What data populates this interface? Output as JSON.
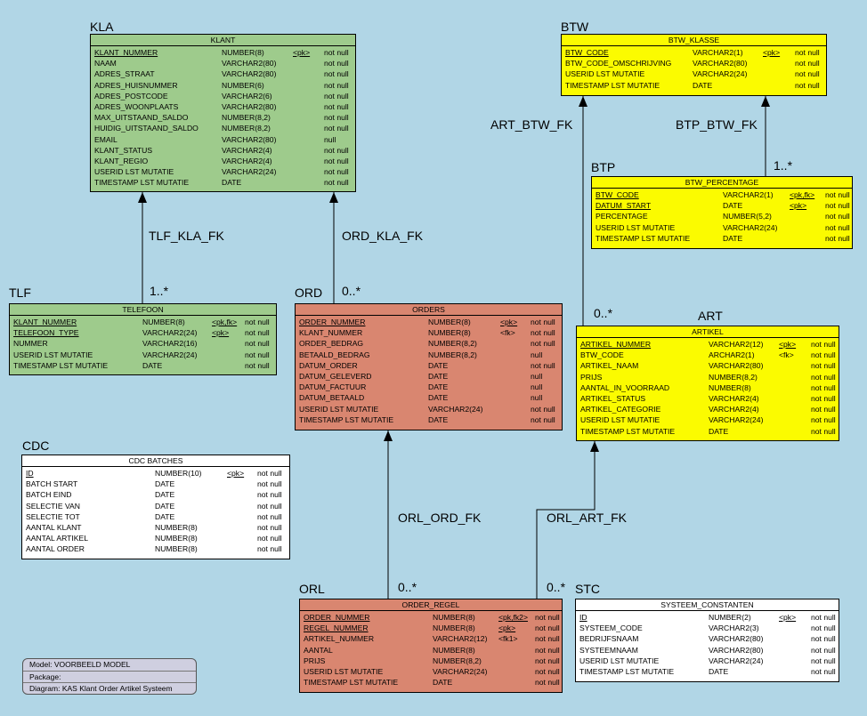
{
  "diagram": {
    "entities": {
      "kla": {
        "code": "KLA",
        "table": "KLANT",
        "rows": [
          {
            "name": "KLANT_NUMMER",
            "type": "NUMBER(8)",
            "key": "<pk>",
            "nullability": "not null",
            "underline": true
          },
          {
            "name": "NAAM",
            "type": "VARCHAR2(80)",
            "key": "",
            "nullability": "not null"
          },
          {
            "name": "ADRES_STRAAT",
            "type": "VARCHAR2(80)",
            "key": "",
            "nullability": "not null"
          },
          {
            "name": "ADRES_HUISNUMMER",
            "type": "NUMBER(6)",
            "key": "",
            "nullability": "not null"
          },
          {
            "name": "ADRES_POSTCODE",
            "type": "VARCHAR2(6)",
            "key": "",
            "nullability": "not null"
          },
          {
            "name": "ADRES_WOONPLAATS",
            "type": "VARCHAR2(80)",
            "key": "",
            "nullability": "not null"
          },
          {
            "name": "MAX_UITSTAAND_SALDO",
            "type": "NUMBER(8,2)",
            "key": "",
            "nullability": "not null"
          },
          {
            "name": "HUIDIG_UITSTAAND_SALDO",
            "type": "NUMBER(8,2)",
            "key": "",
            "nullability": "not null"
          },
          {
            "name": "EMAIL",
            "type": "VARCHAR2(80)",
            "key": "",
            "nullability": "null"
          },
          {
            "name": "KLANT_STATUS",
            "type": "VARCHAR2(4)",
            "key": "",
            "nullability": "not null"
          },
          {
            "name": "KLANT_REGIO",
            "type": "VARCHAR2(4)",
            "key": "",
            "nullability": "not null"
          },
          {
            "name": "USERID LST MUTATIE",
            "type": "VARCHAR2(24)",
            "key": "",
            "nullability": "not null"
          },
          {
            "name": "TIMESTAMP LST MUTATIE",
            "type": "DATE",
            "key": "",
            "nullability": "not null"
          }
        ]
      },
      "tlf": {
        "code": "TLF",
        "table": "TELEFOON",
        "rows": [
          {
            "name": "KLANT_NUMMER",
            "type": "NUMBER(8)",
            "key": "<pk,fk>",
            "nullability": "not null",
            "underline": true
          },
          {
            "name": "TELEFOON_TYPE",
            "type": "VARCHAR2(24)",
            "key": "<pk>",
            "nullability": "not null",
            "underline": true
          },
          {
            "name": "NUMMER",
            "type": "VARCHAR2(16)",
            "key": "",
            "nullability": "not null"
          },
          {
            "name": "USERID LST MUTATIE",
            "type": "VARCHAR2(24)",
            "key": "",
            "nullability": "not null"
          },
          {
            "name": "TIMESTAMP LST MUTATIE",
            "type": "DATE",
            "key": "",
            "nullability": "not null"
          }
        ]
      },
      "ord": {
        "code": "ORD",
        "table": "ORDERS",
        "rows": [
          {
            "name": "ORDER_NUMMER",
            "type": "NUMBER(8)",
            "key": "<pk>",
            "nullability": "not null",
            "underline": true
          },
          {
            "name": "KLANT_NUMMER",
            "type": "NUMBER(8)",
            "key": "<fk>",
            "nullability": "not null"
          },
          {
            "name": "ORDER_BEDRAG",
            "type": "NUMBER(8,2)",
            "key": "",
            "nullability": "not null"
          },
          {
            "name": "BETAALD_BEDRAG",
            "type": "NUMBER(8,2)",
            "key": "",
            "nullability": "null"
          },
          {
            "name": "DATUM_ORDER",
            "type": "DATE",
            "key": "",
            "nullability": "not null"
          },
          {
            "name": "DATUM_GELEVERD",
            "type": "DATE",
            "key": "",
            "nullability": "null"
          },
          {
            "name": "DATUM_FACTUUR",
            "type": "DATE",
            "key": "",
            "nullability": "null"
          },
          {
            "name": "DATUM_BETAALD",
            "type": "DATE",
            "key": "",
            "nullability": "null"
          },
          {
            "name": "USERID LST MUTATIE",
            "type": "VARCHAR2(24)",
            "key": "",
            "nullability": "not null"
          },
          {
            "name": "TIMESTAMP LST MUTATIE",
            "type": "DATE",
            "key": "",
            "nullability": "not null"
          }
        ]
      },
      "orl": {
        "code": "ORL",
        "table": "ORDER_REGEL",
        "rows": [
          {
            "name": "ORDER_NUMMER",
            "type": "NUMBER(8)",
            "key": "<pk,fk2>",
            "nullability": "not null",
            "underline": true
          },
          {
            "name": "REGEL_NUMMER",
            "type": "NUMBER(8)",
            "key": "<pk>",
            "nullability": "not null",
            "underline": true
          },
          {
            "name": "ARTIKEL_NUMMER",
            "type": "VARCHAR2(12)",
            "key": "<fk1>",
            "nullability": "not null"
          },
          {
            "name": "AANTAL",
            "type": "NUMBER(8)",
            "key": "",
            "nullability": "not null"
          },
          {
            "name": "PRIJS",
            "type": "NUMBER(8,2)",
            "key": "",
            "nullability": "not null"
          },
          {
            "name": "USERID LST MUTATIE",
            "type": "VARCHAR2(24)",
            "key": "",
            "nullability": "not null"
          },
          {
            "name": "TIMESTAMP LST MUTATIE",
            "type": "DATE",
            "key": "",
            "nullability": "not null"
          }
        ]
      },
      "btw": {
        "code": "BTW",
        "table": "BTW_KLASSE",
        "rows": [
          {
            "name": "BTW_CODE",
            "type": "VARCHAR2(1)",
            "key": "<pk>",
            "nullability": "not null",
            "underline": true
          },
          {
            "name": "BTW_CODE_OMSCHRIJVING",
            "type": "VARCHAR2(80)",
            "key": "",
            "nullability": "not null"
          },
          {
            "name": "USERID LST MUTATIE",
            "type": "VARCHAR2(24)",
            "key": "",
            "nullability": "not null"
          },
          {
            "name": "TIMESTAMP LST MUTATIE",
            "type": "DATE",
            "key": "",
            "nullability": "not null"
          }
        ]
      },
      "btp": {
        "code": "BTP",
        "table": "BTW_PERCENTAGE",
        "rows": [
          {
            "name": "BTW_CODE",
            "type": "VARCHAR2(1)",
            "key": "<pk,fk>",
            "nullability": "not null",
            "underline": true
          },
          {
            "name": "DATUM_START",
            "type": "DATE",
            "key": "<pk>",
            "nullability": "not null",
            "underline": true
          },
          {
            "name": "PERCENTAGE",
            "type": "NUMBER(5,2)",
            "key": "",
            "nullability": "not null"
          },
          {
            "name": "USERID LST MUTATIE",
            "type": "VARCHAR2(24)",
            "key": "",
            "nullability": "not null"
          },
          {
            "name": "TIMESTAMP LST MUTATIE",
            "type": "DATE",
            "key": "",
            "nullability": "not null"
          }
        ]
      },
      "art": {
        "code": "ART",
        "table": "ARTIKEL",
        "rows": [
          {
            "name": "ARTIKEL_NUMMER",
            "type": "VARCHAR2(12)",
            "key": "<pk>",
            "nullability": "not null",
            "underline": true
          },
          {
            "name": "BTW_CODE",
            "type": "ARCHAR2(1)",
            "key": "<fk>",
            "nullability": "not null"
          },
          {
            "name": "ARTIKEL_NAAM",
            "type": "VARCHAR2(80)",
            "key": "",
            "nullability": "not null"
          },
          {
            "name": "PRIJS",
            "type": "NUMBER(8,2)",
            "key": "",
            "nullability": "not null"
          },
          {
            "name": "AANTAL_IN_VOORRAAD",
            "type": "NUMBER(8)",
            "key": "",
            "nullability": "not null"
          },
          {
            "name": "ARTIKEL_STATUS",
            "type": "VARCHAR2(4)",
            "key": "",
            "nullability": "not null"
          },
          {
            "name": "ARTIKEL_CATEGORIE",
            "type": "VARCHAR2(4)",
            "key": "",
            "nullability": "not null"
          },
          {
            "name": "USERID LST MUTATIE",
            "type": "VARCHAR2(24)",
            "key": "",
            "nullability": "not null"
          },
          {
            "name": "TIMESTAMP LST MUTATIE",
            "type": "DATE",
            "key": "",
            "nullability": "not null"
          }
        ]
      },
      "cdc": {
        "code": "CDC",
        "table": "CDC BATCHES",
        "rows": [
          {
            "name": "ID",
            "type": "NUMBER(10)",
            "key": "<pk>",
            "nullability": "not null",
            "underline": true
          },
          {
            "name": "BATCH START",
            "type": "DATE",
            "key": "",
            "nullability": "not null"
          },
          {
            "name": "BATCH EIND",
            "type": "DATE",
            "key": "",
            "nullability": "not null"
          },
          {
            "name": "SELECTIE VAN",
            "type": "DATE",
            "key": "",
            "nullability": "not null"
          },
          {
            "name": "SELECTIE TOT",
            "type": "DATE",
            "key": "",
            "nullability": "not null"
          },
          {
            "name": "AANTAL KLANT",
            "type": "NUMBER(8)",
            "key": "",
            "nullability": "not null"
          },
          {
            "name": "AANTAL ARTIKEL",
            "type": "NUMBER(8)",
            "key": "",
            "nullability": "not null"
          },
          {
            "name": "AANTAL ORDER",
            "type": "NUMBER(8)",
            "key": "",
            "nullability": "not null"
          }
        ]
      },
      "stc": {
        "code": "STC",
        "table": "SYSTEEM_CONSTANTEN",
        "rows": [
          {
            "name": "ID",
            "type": "NUMBER(2)",
            "key": "<pk>",
            "nullability": "not null",
            "underline": true
          },
          {
            "name": "SYSTEEM_CODE",
            "type": "VARCHAR2(3)",
            "key": "",
            "nullability": "not null"
          },
          {
            "name": "BEDRIJFSNAAM",
            "type": "VARCHAR2(80)",
            "key": "",
            "nullability": "not null"
          },
          {
            "name": "SYSTEEMNAAM",
            "type": "VARCHAR2(80)",
            "key": "",
            "nullability": "not null"
          },
          {
            "name": "USERID LST MUTATIE",
            "type": "VARCHAR2(24)",
            "key": "",
            "nullability": "not null"
          },
          {
            "name": "TIMESTAMP LST MUTATIE",
            "type": "DATE",
            "key": "",
            "nullability": "not null"
          }
        ]
      }
    },
    "relationships": {
      "tlf_kla": {
        "name": "TLF_KLA_FK",
        "multiplicity": "1..*"
      },
      "ord_kla": {
        "name": "ORD_KLA_FK",
        "multiplicity": "0..*"
      },
      "orl_ord": {
        "name": "ORL_ORD_FK",
        "multiplicity": "0..*"
      },
      "orl_art": {
        "name": "ORL_ART_FK",
        "multiplicity": "0..*"
      },
      "art_btw": {
        "name": "ART_BTW_FK",
        "multiplicity": "0..*"
      },
      "btp_btw": {
        "name": "BTP_BTW_FK",
        "multiplicity": "1..*"
      }
    },
    "legend": {
      "model": "Model: VOORBEELD MODEL",
      "package": "Package:",
      "diagram": "Diagram: KAS Klant Order Artikel Systeem"
    },
    "colors": {
      "background": "#b1d6e6",
      "green": "#9ecb8c",
      "yellow": "#fbfb00",
      "salmon": "#d98670",
      "white": "#ffffff"
    }
  }
}
